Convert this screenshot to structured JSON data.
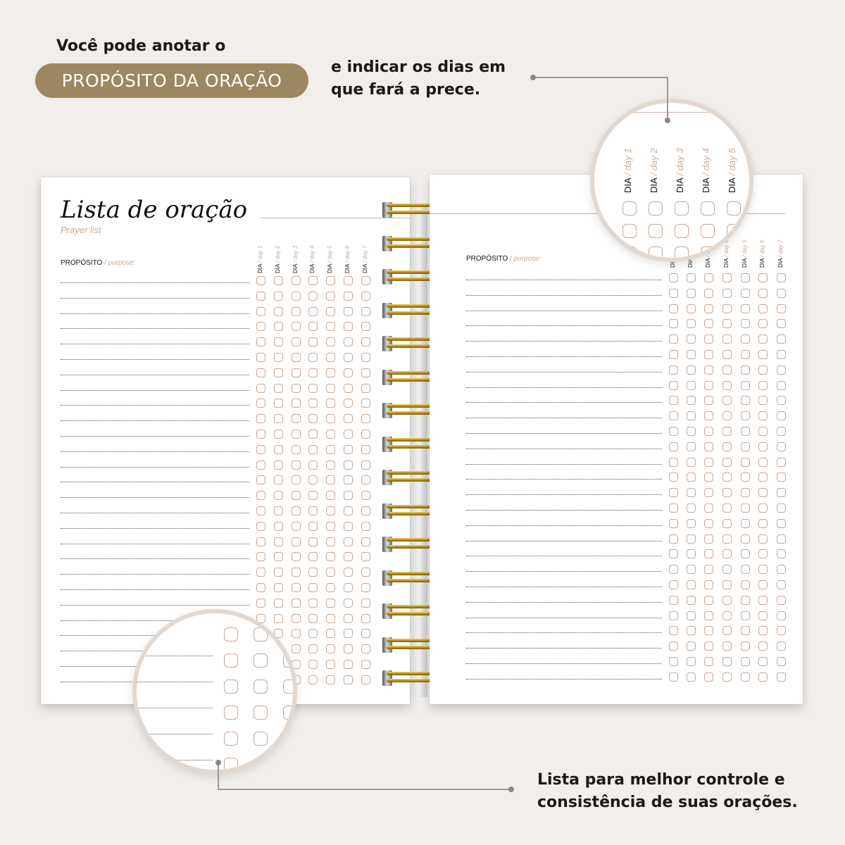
{
  "captions": {
    "top_left": "Você pode anotar o",
    "pill": "PROPÓSITO DA ORAÇÃO",
    "top_right_1": "e indicar os dias em",
    "top_right_2": "que fará a prece.",
    "bottom_1": "Lista para melhor controle e",
    "bottom_2": "consistência de suas orações."
  },
  "left_page": {
    "title": "Lista de oração",
    "subtitle": "Prayer list",
    "purpose_label": "PROPÓSITO",
    "purpose_en": "/ purpose:"
  },
  "right_page": {
    "purpose_label": "PROPÓSITO",
    "purpose_en": "/ purpose:"
  },
  "day_prefix": "DIA",
  "days": [
    "/ day 1",
    "/ day 2",
    "/ day 3",
    "/ day 4",
    "/ day 5",
    "/ day 6",
    "/ day 7"
  ],
  "colors": {
    "background": "#f2eeeb",
    "pill": "#9d8662",
    "accent": "#c7a794",
    "ring": "#c9a227"
  }
}
